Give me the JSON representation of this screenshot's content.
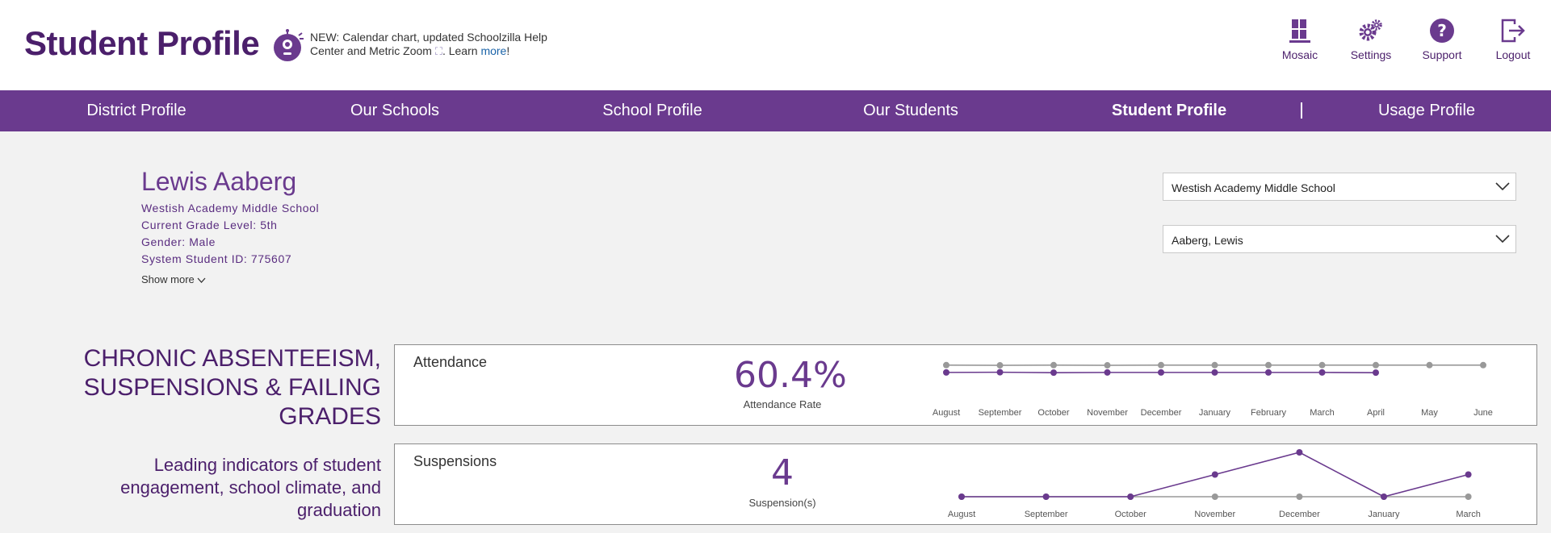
{
  "header": {
    "app_title": "Student Profile",
    "announcement": {
      "text": "NEW: Calendar chart, updated Schoolzilla Help Center and Metric Zoom",
      "zoom_glyph": "⛶",
      "learn": ". Learn ",
      "link": "more",
      "end": "!"
    },
    "topnav": [
      {
        "label": "Mosaic",
        "icon": "mosaic-icon"
      },
      {
        "label": "Settings",
        "icon": "gear-icon"
      },
      {
        "label": "Support",
        "icon": "question-icon"
      },
      {
        "label": "Logout",
        "icon": "logout-icon"
      }
    ]
  },
  "mainnav": {
    "items": [
      {
        "label": "District Profile",
        "active": false
      },
      {
        "label": "Our Schools",
        "active": false
      },
      {
        "label": "School Profile",
        "active": false
      },
      {
        "label": "Our Students",
        "active": false
      },
      {
        "label": "Student Profile",
        "active": true
      },
      {
        "label": "Usage Profile",
        "active": false
      }
    ]
  },
  "student": {
    "name": "Lewis Aaberg",
    "school": "Westish Academy Middle School",
    "grade": "Current Grade Level: 5th",
    "gender": "Gender: Male",
    "system_id": "System Student ID: 775607",
    "show_more": "Show more"
  },
  "selectors": {
    "school": "Westish Academy Middle School",
    "student": "Aaberg, Lewis"
  },
  "section": {
    "title_lines": [
      "CHRONIC ABSENTEEISM,",
      "SUSPENSIONS & FAILING",
      "GRADES"
    ],
    "subtitle_lines": [
      "Leading indicators of student",
      "engagement, school climate, and",
      "graduation"
    ]
  },
  "colors": {
    "brand_purple": "#6a3a8e",
    "dark_purple": "#4b1f6b",
    "comparison_gray": "#999999"
  },
  "cards": {
    "attendance": {
      "title": "Attendance",
      "value": "60.4%",
      "label": "Attendance Rate"
    },
    "suspensions": {
      "title": "Suspensions",
      "value": "4",
      "label": "Suspension(s)"
    }
  },
  "chart_data": [
    {
      "type": "line",
      "title": "",
      "categories": [
        "August",
        "September",
        "October",
        "November",
        "December",
        "January",
        "February",
        "March",
        "April",
        "May",
        "June"
      ],
      "series": [
        {
          "values": [
            0.97,
            0.96,
            0.97,
            0.96,
            0.97,
            0.97,
            0.97,
            0.97,
            0.97,
            0.97,
            0.97
          ]
        },
        {
          "values": [
            0.62,
            0.63,
            0.61,
            0.62,
            0.62,
            0.62,
            0.62,
            0.62,
            0.61,
            null,
            null
          ]
        }
      ],
      "ylim": [
        0,
        1
      ]
    },
    {
      "type": "line",
      "title": "",
      "categories": [
        "August",
        "September",
        "October",
        "November",
        "December",
        "January",
        "March"
      ],
      "series": [
        {
          "values": [
            0,
            0,
            0,
            0,
            0,
            0,
            0
          ]
        },
        {
          "values": [
            0,
            0,
            0,
            1,
            2,
            0,
            1
          ]
        }
      ],
      "ylim": [
        0,
        2
      ]
    }
  ]
}
